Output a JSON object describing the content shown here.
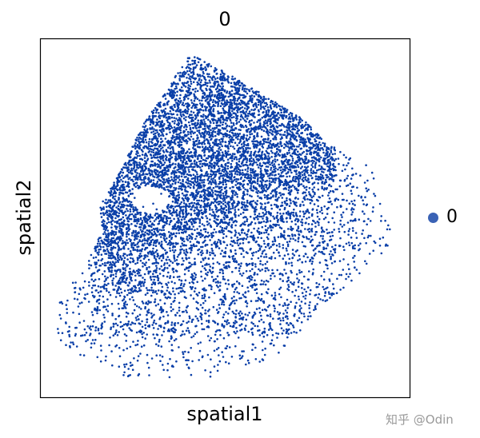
{
  "chart_data": {
    "type": "scatter",
    "title": "0",
    "xlabel": "spatial1",
    "ylabel": "spatial2",
    "ticks": "none",
    "grid": false,
    "legend": {
      "placement": "right",
      "entries": [
        {
          "label": "0",
          "color": "#3a62b5"
        }
      ]
    },
    "series": [
      {
        "name": "0",
        "color": "#0a3fa8"
      }
    ]
  },
  "watermark": "知乎 @Odin"
}
